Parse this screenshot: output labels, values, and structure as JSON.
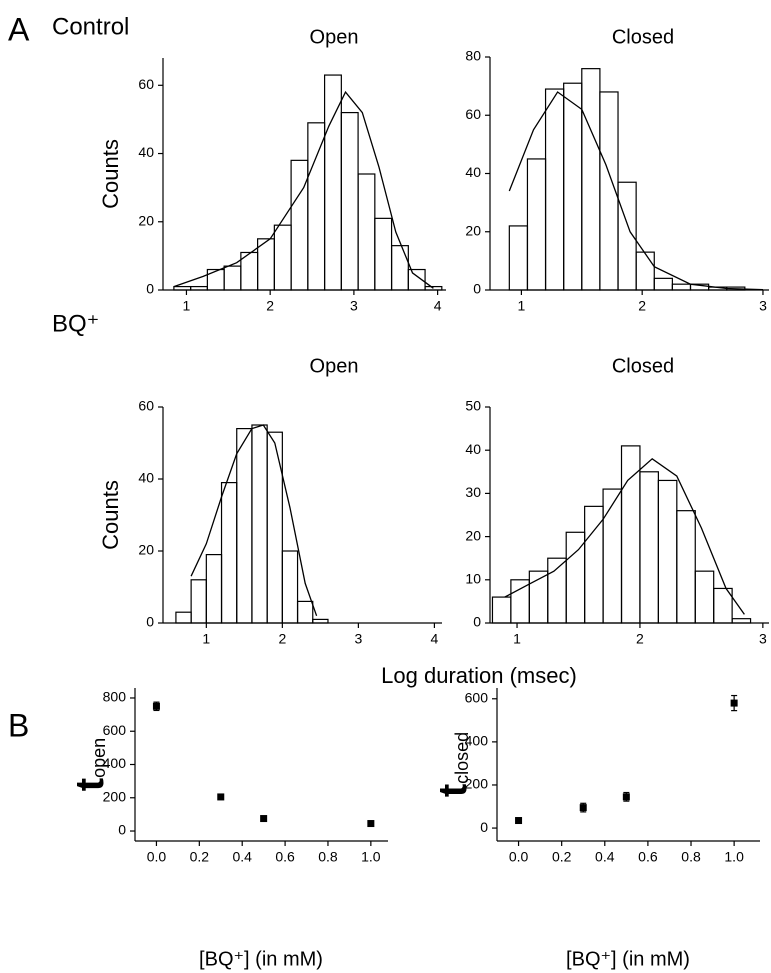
{
  "figure": {
    "panel_a": "A",
    "panel_b": "B",
    "control": "Control",
    "bq": "BQ⁺",
    "x_label": "Log duration (msec)"
  },
  "chart_data": [
    {
      "type": "histogram",
      "title": "Open",
      "y_label": "Counts",
      "bins": [
        0.85,
        1.05,
        1.25,
        1.45,
        1.65,
        1.85,
        2.05,
        2.25,
        2.45,
        2.65,
        2.85,
        3.05,
        3.25,
        3.45,
        3.65,
        3.85,
        4.05
      ],
      "counts": [
        1,
        1,
        6,
        7,
        11,
        15,
        19,
        38,
        49,
        63,
        52,
        34,
        21,
        13,
        6,
        1
      ],
      "fit": {
        "x": [
          0.85,
          1.2,
          1.6,
          2.0,
          2.4,
          2.7,
          2.9,
          3.1,
          3.3,
          3.5,
          3.7,
          3.95
        ],
        "values": [
          1,
          4,
          8,
          15,
          30,
          48,
          58,
          52,
          36,
          17,
          5,
          0.5
        ]
      },
      "xlim": [
        0.72,
        4.1
      ],
      "xticks": [
        1,
        2,
        3,
        4
      ],
      "ylim": [
        0,
        68
      ],
      "yticks": [
        0,
        20,
        40,
        60
      ]
    },
    {
      "type": "histogram",
      "title": "Closed",
      "bins": [
        0.9,
        1.05,
        1.2,
        1.35,
        1.5,
        1.65,
        1.8,
        1.95,
        2.1,
        2.25,
        2.4,
        2.55,
        2.7,
        2.85
      ],
      "counts": [
        22,
        45,
        69,
        71,
        76,
        68,
        37,
        13,
        4,
        2,
        2,
        1,
        1
      ],
      "fit": {
        "x": [
          0.9,
          1.1,
          1.3,
          1.5,
          1.7,
          1.9,
          2.1,
          2.4,
          2.7,
          3.0
        ],
        "values": [
          34,
          55,
          68,
          62,
          43,
          20,
          8,
          2,
          0.5,
          0.1
        ]
      },
      "xlim": [
        0.74,
        3.05
      ],
      "xticks": [
        1,
        2,
        3
      ],
      "ylim": [
        0,
        80
      ],
      "yticks": [
        0,
        20,
        40,
        60,
        80
      ]
    },
    {
      "type": "histogram",
      "title": "Open",
      "y_label": "Counts",
      "bins": [
        0.6,
        0.8,
        1.0,
        1.2,
        1.4,
        1.6,
        1.8,
        2.0,
        2.2,
        2.4,
        2.6
      ],
      "counts": [
        3,
        12,
        19,
        39,
        54,
        55,
        53,
        20,
        6,
        1
      ],
      "fit": {
        "x": [
          0.8,
          1.0,
          1.2,
          1.4,
          1.6,
          1.75,
          1.9,
          2.1,
          2.3,
          2.45
        ],
        "values": [
          13,
          22,
          35,
          47,
          54,
          55,
          50,
          32,
          11,
          2
        ]
      },
      "xlim": [
        0.43,
        4.1
      ],
      "xticks": [
        1,
        2,
        3,
        4
      ],
      "ylim": [
        0,
        60
      ],
      "yticks": [
        0,
        20,
        40,
        60
      ]
    },
    {
      "type": "histogram",
      "title": "Closed",
      "bins": [
        0.8,
        0.95,
        1.1,
        1.25,
        1.4,
        1.55,
        1.7,
        1.85,
        2.0,
        2.15,
        2.3,
        2.45,
        2.6,
        2.75,
        2.9
      ],
      "counts": [
        6,
        10,
        12,
        15,
        21,
        27,
        31,
        41,
        35,
        33,
        26,
        12,
        8,
        1
      ],
      "fit": {
        "x": [
          0.9,
          1.1,
          1.3,
          1.5,
          1.7,
          1.9,
          2.1,
          2.3,
          2.5,
          2.7,
          2.85
        ],
        "values": [
          6,
          9,
          12,
          17,
          24,
          33,
          38,
          34,
          22,
          8,
          2
        ]
      },
      "xlim": [
        0.78,
        3.05
      ],
      "xticks": [
        1,
        2,
        3
      ],
      "ylim": [
        0,
        50
      ],
      "yticks": [
        0,
        10,
        20,
        30,
        40,
        50
      ]
    },
    {
      "type": "scatter",
      "y_label": "t",
      "y_label_sub": "open",
      "x_label": "[BQ⁺] (in mM)",
      "x": [
        0,
        0.3,
        0.5,
        1.0
      ],
      "values": [
        750,
        205,
        75,
        45
      ],
      "errors": [
        25,
        15,
        5,
        5
      ],
      "xlim": [
        -0.1,
        1.08
      ],
      "xticks": [
        {
          "value": 0,
          "label": "0.0"
        },
        0.2,
        0.4,
        0.6,
        0.8,
        {
          "value": 1,
          "label": "1.0"
        }
      ],
      "ylim": [
        -60,
        860
      ],
      "yticks": [
        0,
        200,
        400,
        600,
        800
      ]
    },
    {
      "type": "scatter",
      "y_label": "t",
      "y_label_sub": "closed",
      "x_label": "[BQ⁺] (in mM)",
      "x": [
        0,
        0.3,
        0.5,
        1.0
      ],
      "values": [
        35,
        95,
        145,
        580
      ],
      "errors": [
        5,
        20,
        20,
        35
      ],
      "xlim": [
        -0.1,
        1.12
      ],
      "xticks": [
        {
          "value": 0,
          "label": "0.0"
        },
        0.2,
        0.4,
        0.6,
        0.8,
        {
          "value": 1,
          "label": "1.0"
        }
      ],
      "ylim": [
        -60,
        650
      ],
      "yticks": [
        0,
        200,
        400,
        600
      ]
    }
  ]
}
